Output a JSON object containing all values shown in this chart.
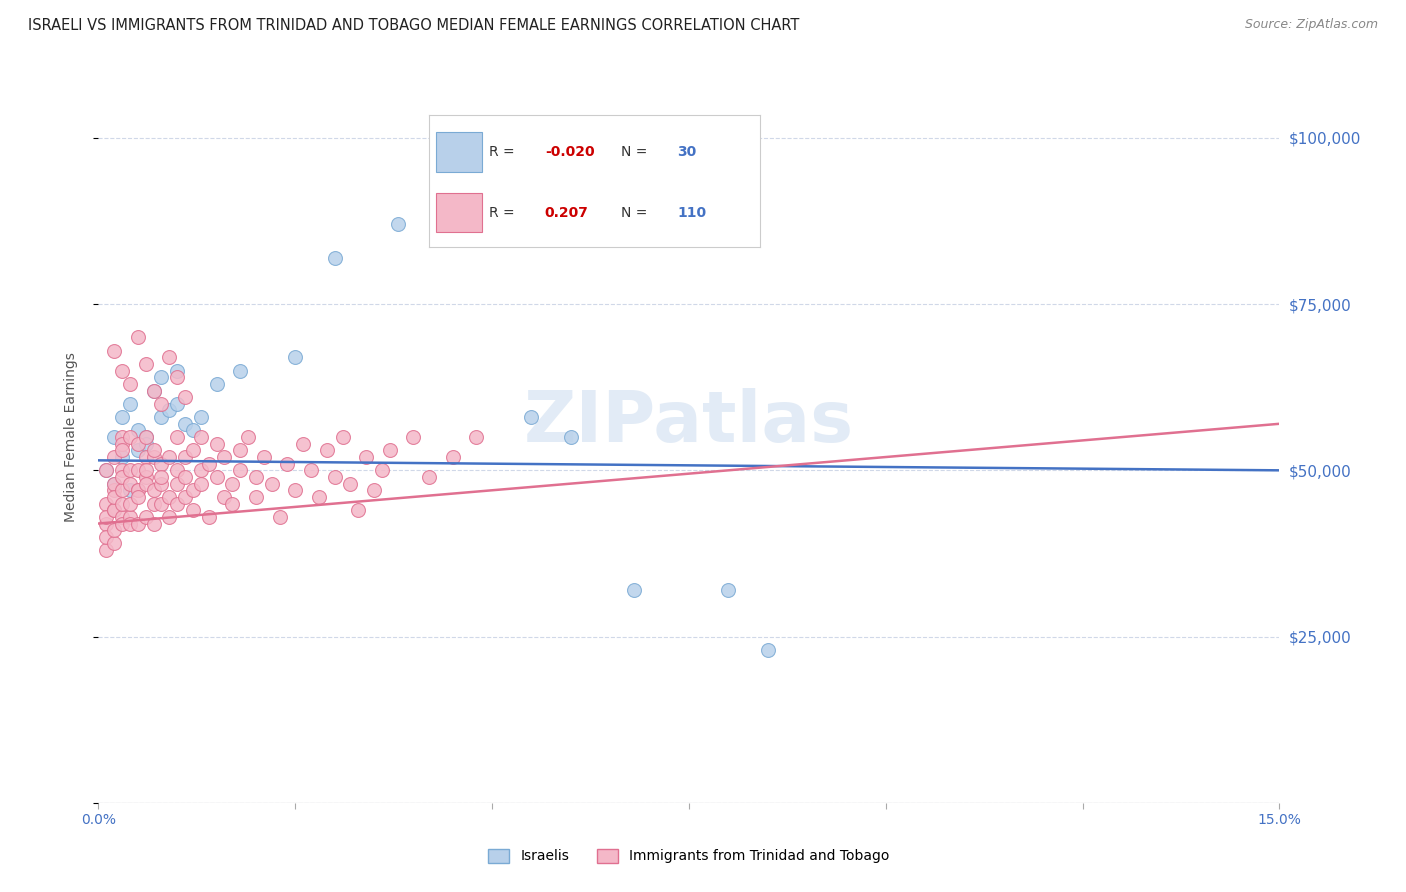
{
  "title": "ISRAELI VS IMMIGRANTS FROM TRINIDAD AND TOBAGO MEDIAN FEMALE EARNINGS CORRELATION CHART",
  "source": "Source: ZipAtlas.com",
  "ylabel": "Median Female Earnings",
  "xmin": 0.0,
  "xmax": 0.15,
  "ymin": 0,
  "ymax": 110000,
  "yticks": [
    0,
    25000,
    50000,
    75000,
    100000
  ],
  "ytick_labels": [
    "",
    "$25,000",
    "$50,000",
    "$75,000",
    "$100,000"
  ],
  "background_color": "#ffffff",
  "grid_color": "#d0d8e8",
  "watermark": "ZIPatlas",
  "series": [
    {
      "name": "Israelis",
      "R": "-0.020",
      "N": "30",
      "color": "#b8d0ea",
      "edge_color": "#7aaad4",
      "line_color": "#4472c4",
      "line_style": "solid",
      "x": [
        0.001,
        0.002,
        0.002,
        0.003,
        0.003,
        0.004,
        0.004,
        0.005,
        0.005,
        0.006,
        0.006,
        0.007,
        0.008,
        0.008,
        0.009,
        0.01,
        0.01,
        0.011,
        0.012,
        0.013,
        0.015,
        0.018,
        0.025,
        0.03,
        0.038,
        0.055,
        0.06,
        0.068,
        0.08,
        0.085
      ],
      "y": [
        50000,
        55000,
        48000,
        58000,
        52000,
        60000,
        47000,
        56000,
        53000,
        55000,
        54000,
        62000,
        58000,
        64000,
        59000,
        65000,
        60000,
        57000,
        56000,
        58000,
        63000,
        65000,
        67000,
        82000,
        87000,
        58000,
        55000,
        32000,
        32000,
        23000
      ],
      "trend_x": [
        0.0,
        0.15
      ],
      "trend_y": [
        51500,
        50000
      ]
    },
    {
      "name": "Immigrants from Trinidad and Tobago",
      "R": "0.207",
      "N": "110",
      "color": "#f4b8c8",
      "edge_color": "#e07090",
      "line_color": "#e07090",
      "line_style": "solid",
      "x": [
        0.001,
        0.001,
        0.001,
        0.001,
        0.001,
        0.001,
        0.002,
        0.002,
        0.002,
        0.002,
        0.002,
        0.002,
        0.002,
        0.002,
        0.003,
        0.003,
        0.003,
        0.003,
        0.003,
        0.003,
        0.003,
        0.003,
        0.003,
        0.004,
        0.004,
        0.004,
        0.004,
        0.004,
        0.004,
        0.005,
        0.005,
        0.005,
        0.005,
        0.005,
        0.005,
        0.006,
        0.006,
        0.006,
        0.006,
        0.006,
        0.006,
        0.007,
        0.007,
        0.007,
        0.007,
        0.007,
        0.008,
        0.008,
        0.008,
        0.008,
        0.009,
        0.009,
        0.009,
        0.01,
        0.01,
        0.01,
        0.01,
        0.011,
        0.011,
        0.011,
        0.012,
        0.012,
        0.012,
        0.013,
        0.013,
        0.013,
        0.014,
        0.014,
        0.015,
        0.015,
        0.016,
        0.016,
        0.017,
        0.017,
        0.018,
        0.018,
        0.019,
        0.02,
        0.02,
        0.021,
        0.022,
        0.023,
        0.024,
        0.025,
        0.026,
        0.027,
        0.028,
        0.029,
        0.03,
        0.031,
        0.032,
        0.033,
        0.034,
        0.035,
        0.036,
        0.037,
        0.04,
        0.042,
        0.045,
        0.048,
        0.002,
        0.003,
        0.004,
        0.005,
        0.006,
        0.007,
        0.008,
        0.009,
        0.01,
        0.011
      ],
      "y": [
        38000,
        42000,
        45000,
        40000,
        43000,
        50000,
        39000,
        44000,
        47000,
        41000,
        48000,
        52000,
        44000,
        46000,
        43000,
        55000,
        45000,
        50000,
        42000,
        47000,
        54000,
        49000,
        53000,
        48000,
        43000,
        55000,
        45000,
        50000,
        42000,
        47000,
        50000,
        42000,
        47000,
        54000,
        46000,
        49000,
        52000,
        43000,
        48000,
        55000,
        50000,
        45000,
        52000,
        47000,
        53000,
        42000,
        48000,
        45000,
        51000,
        49000,
        46000,
        52000,
        43000,
        48000,
        55000,
        50000,
        45000,
        49000,
        52000,
        46000,
        53000,
        47000,
        44000,
        50000,
        55000,
        48000,
        43000,
        51000,
        49000,
        54000,
        46000,
        52000,
        48000,
        45000,
        53000,
        50000,
        55000,
        49000,
        46000,
        52000,
        48000,
        43000,
        51000,
        47000,
        54000,
        50000,
        46000,
        53000,
        49000,
        55000,
        48000,
        44000,
        52000,
        47000,
        50000,
        53000,
        55000,
        49000,
        52000,
        55000,
        68000,
        65000,
        63000,
        70000,
        66000,
        62000,
        60000,
        67000,
        64000,
        61000
      ],
      "trend_x": [
        0.0,
        0.15
      ],
      "trend_y": [
        42000,
        57000
      ]
    }
  ],
  "R_color": "#cc0000",
  "N_color": "#4472c4",
  "legend_R_color": "#4472c4",
  "legend_N_color": "#4472c4"
}
